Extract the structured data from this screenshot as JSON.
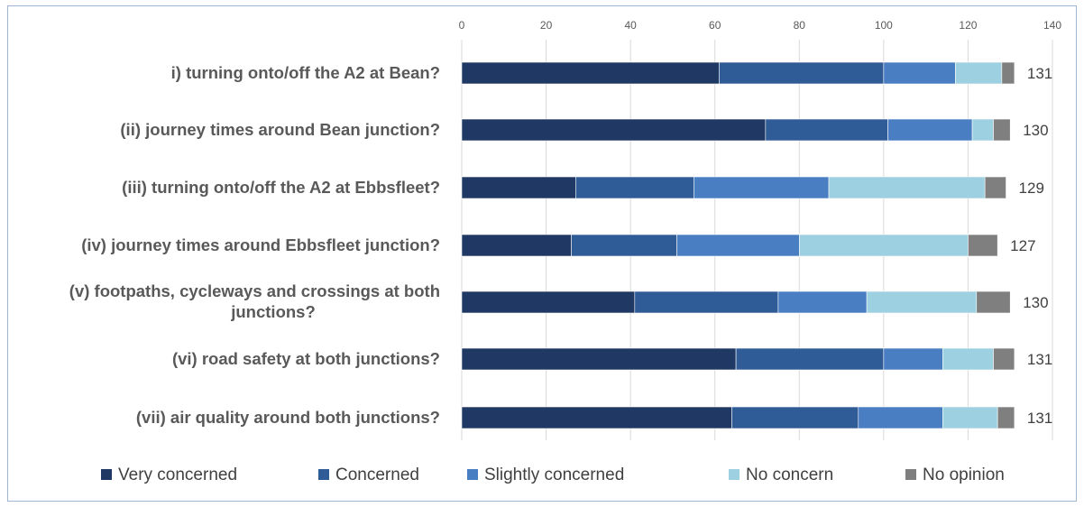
{
  "chart_data": {
    "type": "bar",
    "orientation": "horizontal",
    "stacked": true,
    "categories": [
      [
        "i)  turning onto/off the A2 at Bean?"
      ],
      [
        "(ii) journey times around Bean junction?"
      ],
      [
        "(iii)  turning onto/off the A2 at Ebbsfleet?"
      ],
      [
        "(iv) journey times around Ebbsfleet junction?"
      ],
      [
        "(v) footpaths, cycleways and crossings at both",
        "junctions?"
      ],
      [
        "(vi) road safety at both junctions?"
      ],
      [
        "(vii)  air quality around both junctions?"
      ]
    ],
    "series": [
      {
        "name": "Very concerned",
        "color": "#203864",
        "values": [
          61,
          72,
          27,
          26,
          41,
          65,
          64
        ]
      },
      {
        "name": "Concerned",
        "color": "#2f5c97",
        "values": [
          39,
          29,
          28,
          25,
          34,
          35,
          30
        ]
      },
      {
        "name": "Slightly concerned",
        "color": "#4a7ec3",
        "values": [
          17,
          20,
          32,
          29,
          21,
          14,
          20
        ]
      },
      {
        "name": "No concern",
        "color": "#9dd0e0",
        "values": [
          11,
          5,
          37,
          40,
          26,
          12,
          13
        ]
      },
      {
        "name": "No opinion",
        "color": "#7f7f7f",
        "values": [
          3,
          4,
          5,
          7,
          8,
          5,
          4
        ]
      }
    ],
    "totals": [
      "131",
      "130",
      "129",
      "127",
      "130",
      "131",
      "131"
    ],
    "xlim": [
      0,
      140
    ],
    "xticks": [
      0,
      20,
      40,
      60,
      80,
      100,
      120,
      140
    ],
    "xaxis_position": "top",
    "grid": true,
    "legend_position": "bottom",
    "title": "",
    "xlabel": "",
    "ylabel": ""
  }
}
